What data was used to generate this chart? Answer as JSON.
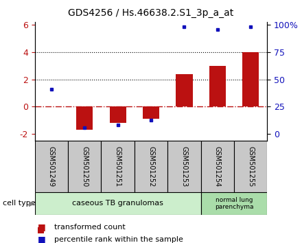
{
  "title": "GDS4256 / Hs.46638.2.S1_3p_a_at",
  "samples": [
    "GSM501249",
    "GSM501250",
    "GSM501251",
    "GSM501252",
    "GSM501253",
    "GSM501254",
    "GSM501255"
  ],
  "transformed_count": [
    0.0,
    -1.7,
    -1.2,
    -0.9,
    2.4,
    3.0,
    4.0
  ],
  "percentile_rank_left": [
    1.3,
    -1.55,
    -1.35,
    -1.0,
    5.85,
    5.65,
    5.85
  ],
  "ylim": [
    -2.5,
    6.2
  ],
  "yticks_left": [
    -2,
    0,
    2,
    4,
    6
  ],
  "right_tick_positions": [
    -2.0,
    0.0,
    2.0,
    4.0,
    6.0
  ],
  "right_ytick_labels": [
    "0",
    "25",
    "50",
    "75",
    "100%"
  ],
  "bar_color": "#BB1111",
  "dot_color": "#1111BB",
  "zero_line_color": "#BB1111",
  "group1_label": "caseous TB granulomas",
  "group2_label": "normal lung\nparenchyma",
  "group1_color": "#CCEECC",
  "group2_color": "#AADDAA",
  "cell_type_label": "cell type",
  "legend_bar_label": "transformed count",
  "legend_dot_label": "percentile rank within the sample",
  "bg_color": "#FFFFFF",
  "plot_bg_color": "#FFFFFF",
  "dotted_lines": [
    2,
    4
  ],
  "label_bg_color": "#C8C8C8",
  "bar_width": 0.5
}
